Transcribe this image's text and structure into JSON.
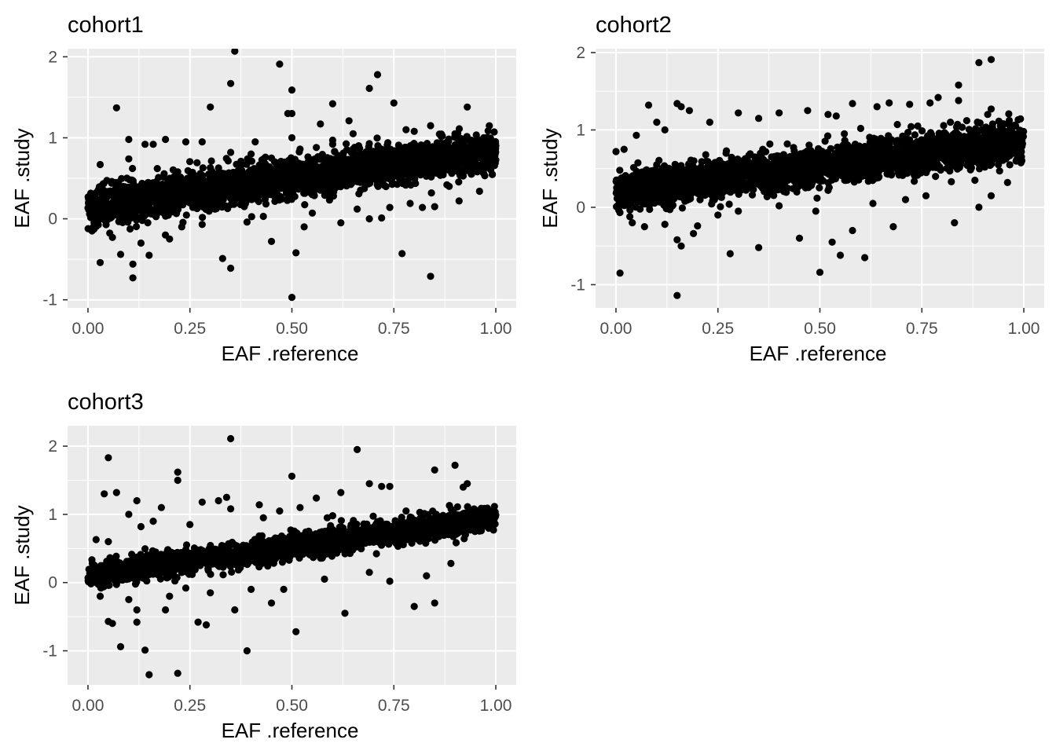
{
  "chart_data": [
    {
      "type": "scatter",
      "title": "cohort1",
      "xlabel": "EAF .reference",
      "ylabel": "EAF .study",
      "xlim": [
        -0.05,
        1.05
      ],
      "ylim": [
        -1.1,
        2.1
      ],
      "x_ticks": [
        0,
        0.25,
        0.5,
        0.75,
        1
      ],
      "x_tick_labels": [
        "0.00",
        "0.25",
        "0.50",
        "0.75",
        "1.00"
      ],
      "y_ticks": [
        -1,
        0,
        1,
        2
      ],
      "y_tick_labels": [
        "-1",
        "0",
        "1",
        "2"
      ],
      "grid": true,
      "band": {
        "slope": 0.7,
        "intercept": 0.15,
        "spread": 0.12,
        "n": 2600
      },
      "outliers": [
        [
          0.36,
          2.07
        ],
        [
          0.35,
          1.67
        ],
        [
          0.47,
          1.91
        ],
        [
          0.5,
          1.59
        ],
        [
          0.49,
          1.3
        ],
        [
          0.5,
          1.3
        ],
        [
          0.6,
          1.42
        ],
        [
          0.07,
          1.37
        ],
        [
          0.3,
          1.38
        ],
        [
          0.71,
          1.78
        ],
        [
          0.69,
          1.61
        ],
        [
          0.75,
          1.43
        ],
        [
          0.93,
          1.38
        ],
        [
          0.84,
          1.15
        ],
        [
          0.5,
          1.0
        ],
        [
          0.52,
          0.86
        ],
        [
          0.6,
          0.97
        ],
        [
          0.65,
          1.05
        ],
        [
          0.24,
          0.95
        ],
        [
          0.1,
          0.98
        ],
        [
          0.14,
          0.92
        ],
        [
          0.19,
          0.98
        ],
        [
          0.16,
          0.92
        ],
        [
          0.28,
          0.95
        ],
        [
          0.41,
          0.95
        ],
        [
          0.57,
          1.17
        ],
        [
          0.64,
          1.21
        ],
        [
          0.78,
          1.1
        ],
        [
          0.8,
          1.08
        ],
        [
          0.9,
          1.05
        ],
        [
          0.03,
          0.67
        ],
        [
          0.1,
          0.74
        ],
        [
          0.11,
          -0.73
        ],
        [
          0.15,
          -0.45
        ],
        [
          0.08,
          -0.44
        ],
        [
          0.03,
          -0.54
        ],
        [
          0.11,
          -0.56
        ],
        [
          0.33,
          -0.49
        ],
        [
          0.35,
          -0.61
        ],
        [
          0.5,
          -0.97
        ],
        [
          0.51,
          -0.42
        ],
        [
          0.45,
          -0.28
        ],
        [
          0.77,
          -0.43
        ],
        [
          0.84,
          -0.71
        ],
        [
          0.53,
          -0.1
        ],
        [
          0.62,
          -0.05
        ],
        [
          0.69,
          0.0
        ],
        [
          0.74,
          0.14
        ],
        [
          0.79,
          0.19
        ],
        [
          0.85,
          0.15
        ],
        [
          0.91,
          0.22
        ],
        [
          0.96,
          0.34
        ],
        [
          0.23,
          -0.1
        ],
        [
          0.28,
          -0.07
        ],
        [
          0.39,
          -0.04
        ],
        [
          0.43,
          0.03
        ],
        [
          0.19,
          -0.2
        ],
        [
          0.2,
          -0.25
        ],
        [
          0.01,
          -0.15
        ],
        [
          0.06,
          -0.23
        ],
        [
          0.13,
          -0.3
        ],
        [
          0.55,
          0.07
        ],
        [
          0.66,
          0.12
        ],
        [
          0.72,
          0.01
        ],
        [
          0.82,
          0.14
        ],
        [
          0.88,
          0.42
        ],
        [
          0.94,
          0.55
        ],
        [
          0.3,
          0.63
        ],
        [
          0.22,
          0.58
        ],
        [
          0.45,
          0.75
        ],
        [
          0.4,
          0.8
        ],
        [
          0.56,
          0.88
        ],
        [
          0.35,
          0.82
        ],
        [
          0.17,
          0.62
        ]
      ]
    },
    {
      "type": "scatter",
      "title": "cohort2",
      "xlabel": "EAF .reference",
      "ylabel": "EAF .study",
      "xlim": [
        -0.05,
        1.05
      ],
      "ylim": [
        -1.3,
        2.05
      ],
      "x_ticks": [
        0,
        0.25,
        0.5,
        0.75,
        1
      ],
      "x_tick_labels": [
        "0.00",
        "0.25",
        "0.50",
        "0.75",
        "1.00"
      ],
      "y_ticks": [
        -1,
        0,
        1,
        2
      ],
      "y_tick_labels": [
        "-1",
        "0",
        "1",
        "2"
      ],
      "grid": true,
      "band": {
        "slope": 0.65,
        "intercept": 0.2,
        "spread": 0.12,
        "n": 2600
      },
      "outliers": [
        [
          0.89,
          1.87
        ],
        [
          0.92,
          1.91
        ],
        [
          0.84,
          1.58
        ],
        [
          0.84,
          1.38
        ],
        [
          0.92,
          1.27
        ],
        [
          0.79,
          1.42
        ],
        [
          0.77,
          1.35
        ],
        [
          0.72,
          1.33
        ],
        [
          0.67,
          1.35
        ],
        [
          0.64,
          1.3
        ],
        [
          0.58,
          1.34
        ],
        [
          0.47,
          1.25
        ],
        [
          0.52,
          1.2
        ],
        [
          0.54,
          1.18
        ],
        [
          0.4,
          1.22
        ],
        [
          0.35,
          1.15
        ],
        [
          0.3,
          1.22
        ],
        [
          0.23,
          1.1
        ],
        [
          0.18,
          1.25
        ],
        [
          0.15,
          1.34
        ],
        [
          0.08,
          1.32
        ],
        [
          0.16,
          1.3
        ],
        [
          0.1,
          1.1
        ],
        [
          0.12,
          1.0
        ],
        [
          0.05,
          0.93
        ],
        [
          0.0,
          0.72
        ],
        [
          0.02,
          0.75
        ],
        [
          0.01,
          -0.85
        ],
        [
          0.15,
          -1.14
        ],
        [
          0.16,
          -0.5
        ],
        [
          0.15,
          -0.42
        ],
        [
          0.19,
          -0.34
        ],
        [
          0.2,
          -0.24
        ],
        [
          0.28,
          -0.6
        ],
        [
          0.35,
          -0.52
        ],
        [
          0.5,
          -0.84
        ],
        [
          0.45,
          -0.4
        ],
        [
          0.53,
          -0.45
        ],
        [
          0.55,
          -0.62
        ],
        [
          0.61,
          -0.65
        ],
        [
          0.58,
          -0.3
        ],
        [
          0.68,
          -0.25
        ],
        [
          0.89,
          0.0
        ],
        [
          0.83,
          -0.2
        ],
        [
          0.92,
          0.15
        ],
        [
          0.96,
          0.32
        ],
        [
          0.88,
          0.35
        ],
        [
          0.76,
          0.15
        ],
        [
          0.71,
          0.1
        ],
        [
          0.63,
          0.05
        ],
        [
          0.49,
          -0.05
        ],
        [
          0.4,
          0.02
        ],
        [
          0.3,
          -0.05
        ],
        [
          0.12,
          -0.22
        ],
        [
          0.04,
          -0.2
        ],
        [
          0.07,
          -0.25
        ],
        [
          0.25,
          -0.1
        ],
        [
          0.36,
          0.75
        ],
        [
          0.42,
          0.82
        ],
        [
          0.27,
          0.7
        ],
        [
          0.22,
          0.68
        ],
        [
          0.56,
          0.95
        ],
        [
          0.6,
          1.02
        ],
        [
          0.69,
          1.07
        ],
        [
          0.74,
          1.05
        ],
        [
          0.82,
          1.1
        ],
        [
          0.86,
          1.12
        ],
        [
          0.95,
          1.08
        ],
        [
          0.98,
          1.05
        ]
      ]
    },
    {
      "type": "scatter",
      "title": "cohort3",
      "xlabel": "EAF .reference",
      "ylabel": "EAF .study",
      "xlim": [
        -0.05,
        1.05
      ],
      "ylim": [
        -1.5,
        2.3
      ],
      "x_ticks": [
        0,
        0.25,
        0.5,
        0.75,
        1
      ],
      "x_tick_labels": [
        "0.00",
        "0.25",
        "0.50",
        "0.75",
        "1.00"
      ],
      "y_ticks": [
        -1,
        0,
        1,
        2
      ],
      "y_tick_labels": [
        "-1",
        "0",
        "1",
        "2"
      ],
      "grid": true,
      "band": {
        "slope": 0.85,
        "intercept": 0.1,
        "spread": 0.09,
        "n": 2000
      },
      "outliers": [
        [
          0.35,
          2.11
        ],
        [
          0.66,
          1.95
        ],
        [
          0.05,
          1.83
        ],
        [
          0.22,
          1.62
        ],
        [
          0.22,
          1.5
        ],
        [
          0.04,
          1.3
        ],
        [
          0.07,
          1.32
        ],
        [
          0.5,
          1.56
        ],
        [
          0.85,
          1.65
        ],
        [
          0.9,
          1.72
        ],
        [
          0.93,
          1.45
        ],
        [
          0.92,
          1.4
        ],
        [
          0.69,
          1.45
        ],
        [
          0.72,
          1.41
        ],
        [
          0.74,
          1.41
        ],
        [
          0.62,
          1.32
        ],
        [
          0.56,
          1.24
        ],
        [
          0.35,
          1.08
        ],
        [
          0.34,
          1.25
        ],
        [
          0.32,
          1.2
        ],
        [
          0.28,
          1.18
        ],
        [
          0.42,
          1.14
        ],
        [
          0.47,
          1.05
        ],
        [
          0.52,
          1.1
        ],
        [
          0.12,
          1.2
        ],
        [
          0.18,
          1.1
        ],
        [
          0.1,
          1.0
        ],
        [
          0.13,
          0.82
        ],
        [
          0.02,
          0.63
        ],
        [
          0.05,
          0.6
        ],
        [
          0.15,
          -1.35
        ],
        [
          0.22,
          -1.33
        ],
        [
          0.14,
          -0.99
        ],
        [
          0.08,
          -0.94
        ],
        [
          0.39,
          -1.0
        ],
        [
          0.51,
          -0.72
        ],
        [
          0.29,
          -0.62
        ],
        [
          0.27,
          -0.58
        ],
        [
          0.12,
          -0.58
        ],
        [
          0.05,
          -0.57
        ],
        [
          0.06,
          -0.6
        ],
        [
          0.12,
          -0.4
        ],
        [
          0.19,
          -0.4
        ],
        [
          0.36,
          -0.4
        ],
        [
          0.45,
          -0.3
        ],
        [
          0.63,
          -0.45
        ],
        [
          0.8,
          -0.35
        ],
        [
          0.85,
          -0.3
        ],
        [
          0.89,
          0.28
        ],
        [
          0.83,
          0.1
        ],
        [
          0.74,
          0.02
        ],
        [
          0.69,
          0.15
        ],
        [
          0.58,
          0.05
        ],
        [
          0.48,
          -0.1
        ],
        [
          0.4,
          -0.1
        ],
        [
          0.3,
          -0.15
        ],
        [
          0.24,
          -0.08
        ],
        [
          0.2,
          -0.2
        ],
        [
          0.1,
          -0.25
        ],
        [
          0.03,
          -0.2
        ],
        [
          0.16,
          0.9
        ],
        [
          0.25,
          0.85
        ],
        [
          0.43,
          0.95
        ],
        [
          0.6,
          0.98
        ],
        [
          0.78,
          1.05
        ],
        [
          0.96,
          0.8
        ]
      ]
    }
  ]
}
